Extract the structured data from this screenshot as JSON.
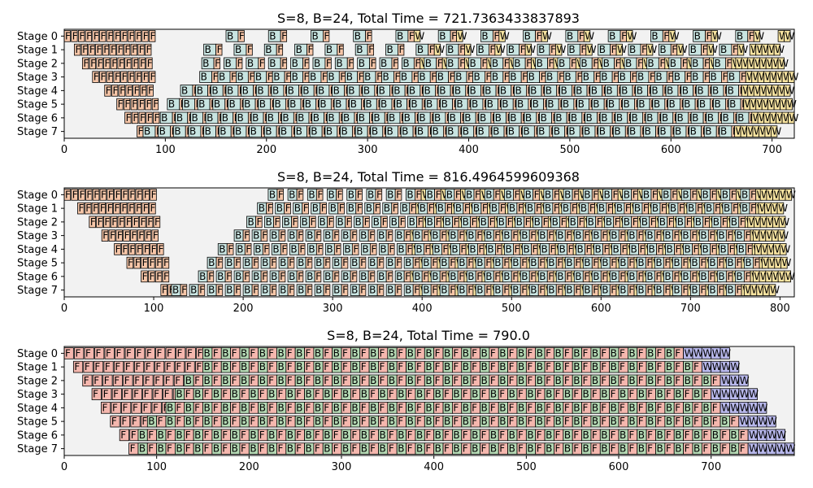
{
  "figure": {
    "background": "#ffffff"
  },
  "chart_data": [
    {
      "type": "timeline",
      "title": "S=8, B=24, Total Time = 721.7363433837893",
      "stage_labels": [
        "Stage 0",
        "Stage 1",
        "Stage 2",
        "Stage 3",
        "Stage 4",
        "Stage 5",
        "Stage 6",
        "Stage 7"
      ],
      "xlim": [
        0,
        722
      ],
      "xticks": [
        0,
        100,
        200,
        300,
        400,
        500,
        600,
        700
      ],
      "grid": false,
      "panel_background": "#f2f2f2",
      "colors": {
        "F": "#f7c6a8",
        "B": "#c8e4e1",
        "W": "#f7e3a0"
      },
      "pattern": {
        "warmup_F": [
          13,
          11,
          10,
          9,
          7,
          6,
          5,
          3
        ],
        "first_F_start": [
          0,
          10,
          18,
          28,
          40,
          52,
          60,
          72
        ],
        "first_B_start": [
          160,
          138,
          136,
          134,
          115,
          102,
          95,
          78
        ],
        "B_spacing": [
          42,
          30,
          22,
          18,
          15,
          15,
          15,
          15
        ],
        "F_width": 6,
        "B_width": 12,
        "W_width": 6,
        "row_end": [
          722,
          708,
          716,
          722,
          722,
          722,
          722,
          710
        ]
      }
    },
    {
      "type": "timeline",
      "title": "S=8, B=24, Total Time = 816.4964599609368",
      "stage_labels": [
        "Stage 0",
        "Stage 1",
        "Stage 2",
        "Stage 3",
        "Stage 4",
        "Stage 5",
        "Stage 6",
        "Stage 7"
      ],
      "xlim": [
        0,
        816
      ],
      "xticks": [
        0,
        100,
        200,
        300,
        400,
        500,
        600,
        700,
        800
      ],
      "grid": false,
      "panel_background": "#f2f2f2",
      "colors": {
        "F": "#f7c6a8",
        "B": "#c8e4e1",
        "W": "#f7e3a0"
      },
      "pattern": {
        "warmup_F": [
          13,
          11,
          10,
          8,
          7,
          6,
          4,
          3
        ],
        "first_F_start": [
          0,
          15,
          28,
          42,
          56,
          70,
          86,
          108
        ],
        "first_B_start": [
          228,
          216,
          204,
          190,
          172,
          160,
          150,
          120
        ],
        "B_spacing": [
          22,
          20,
          20,
          20,
          20,
          20,
          20,
          20
        ],
        "F_width": 7,
        "B_width": 10,
        "W_width": 7,
        "row_end": [
          816,
          810,
          810,
          810,
          812,
          812,
          812,
          795
        ]
      }
    },
    {
      "type": "timeline",
      "title": "S=8, B=24, Total Time = 790.0",
      "stage_labels": [
        "Stage 0",
        "Stage 1",
        "Stage 2",
        "Stage 3",
        "Stage 4",
        "Stage 5",
        "Stage 6",
        "Stage 7"
      ],
      "xlim": [
        0,
        790
      ],
      "xticks": [
        0,
        100,
        200,
        300,
        400,
        500,
        600,
        700
      ],
      "grid": false,
      "panel_background": "#f2f2f2",
      "colors": {
        "F": "#f5b7ae",
        "B": "#b4d9b4",
        "W": "#b8b8ec"
      },
      "pattern": {
        "warmup_F": [
          15,
          14,
          12,
          10,
          8,
          6,
          4,
          2
        ],
        "first_F_start": [
          0,
          10,
          20,
          30,
          40,
          50,
          60,
          70
        ],
        "first_B_start": [
          150,
          150,
          130,
          120,
          110,
          90,
          80,
          80
        ],
        "B_spacing": [
          10,
          10,
          10,
          10,
          10,
          10,
          10,
          10
        ],
        "F_width": 10,
        "B_width": 10,
        "W_width": 10,
        "row_end": [
          720,
          730,
          745,
          750,
          760,
          770,
          785,
          790
        ]
      }
    }
  ]
}
